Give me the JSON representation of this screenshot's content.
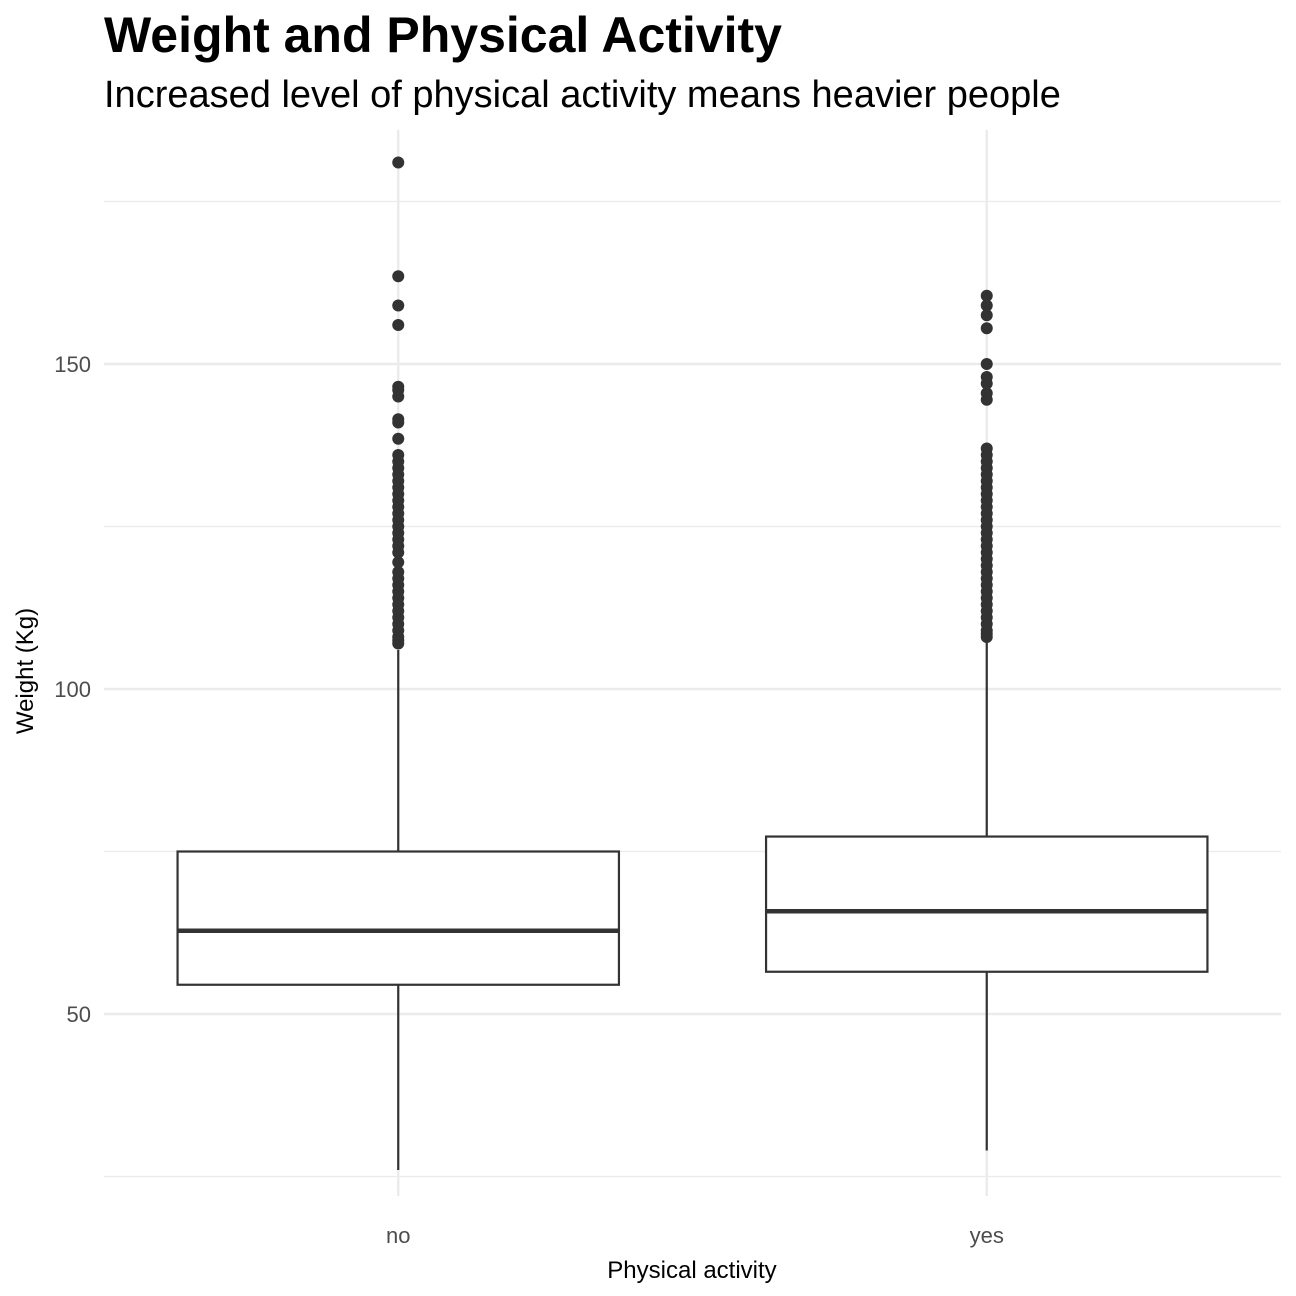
{
  "chart_data": {
    "type": "boxplot",
    "title": "Weight and Physical Activity",
    "subtitle": "Increased level of physical activity means heavier people",
    "xlabel": "Physical activity",
    "ylabel": "Weight (Kg)",
    "ylim": [
      22,
      186
    ],
    "yticks": [
      50,
      100,
      150
    ],
    "grid": true,
    "categories": [
      "no",
      "yes"
    ],
    "boxes": [
      {
        "category": "no",
        "lower_whisker": 26,
        "q1": 54.5,
        "median": 62.8,
        "q3": 75,
        "upper_whisker": 106,
        "outliers": [
          107,
          107.5,
          108,
          109,
          110,
          111,
          112,
          113,
          114,
          115,
          116,
          117,
          118,
          119.5,
          121,
          122,
          123,
          124,
          125,
          126,
          127,
          128,
          129,
          130,
          131,
          132,
          133,
          134,
          135,
          136,
          138.5,
          141,
          141.5,
          145,
          146,
          146.5,
          156,
          159,
          163.5,
          181
        ]
      },
      {
        "category": "yes",
        "lower_whisker": 29,
        "q1": 56.5,
        "median": 65.8,
        "q3": 77.3,
        "upper_whisker": 107.5,
        "outliers": [
          108,
          108.5,
          109,
          110,
          111,
          112,
          113,
          114,
          115,
          116,
          117,
          118,
          119,
          120,
          121,
          122,
          123,
          124,
          125,
          126,
          127,
          128,
          129,
          130,
          131,
          132,
          133,
          134,
          135,
          136,
          137,
          144.5,
          145.5,
          147,
          148,
          150,
          155.5,
          157.5,
          159,
          160.5
        ]
      }
    ]
  }
}
